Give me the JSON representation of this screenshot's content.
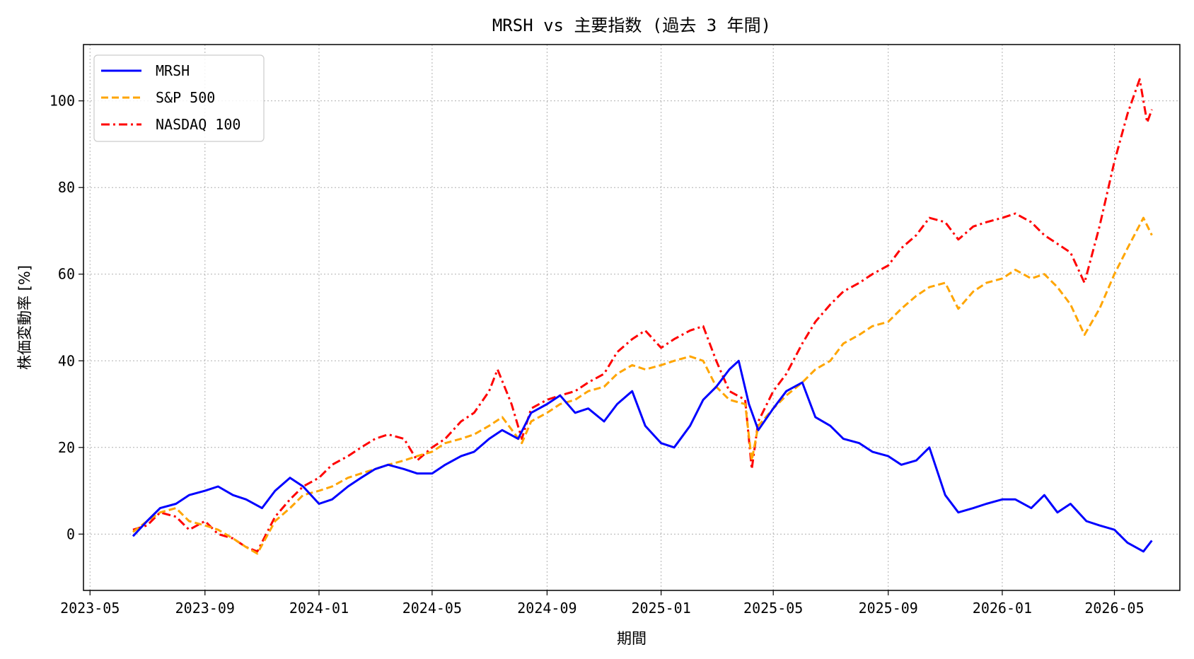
{
  "chart_data": {
    "type": "line",
    "title": "MRSH vs 主要指数 (過去 3 年間)",
    "xlabel": "期間",
    "ylabel": "株価変動率 [%]",
    "x_range": [
      "2023-04-24",
      "2026-07-10"
    ],
    "ylim": [
      -13,
      113
    ],
    "yticks": [
      0,
      20,
      40,
      60,
      80,
      100
    ],
    "xticks": [
      {
        "date": "2023-05-01",
        "label": "2023-05"
      },
      {
        "date": "2023-09-01",
        "label": "2023-09"
      },
      {
        "date": "2024-01-01",
        "label": "2024-01"
      },
      {
        "date": "2024-05-01",
        "label": "2024-05"
      },
      {
        "date": "2024-09-01",
        "label": "2024-09"
      },
      {
        "date": "2025-01-01",
        "label": "2025-01"
      },
      {
        "date": "2025-05-01",
        "label": "2025-05"
      },
      {
        "date": "2025-09-01",
        "label": "2025-09"
      },
      {
        "date": "2026-01-01",
        "label": "2026-01"
      },
      {
        "date": "2026-05-01",
        "label": "2026-05"
      }
    ],
    "grid": true,
    "legend_position": "top-left",
    "series": [
      {
        "name": "MRSH",
        "color": "#0000ff",
        "style": "solid",
        "x": [
          "2023-06-16",
          "2023-07-01",
          "2023-07-15",
          "2023-08-01",
          "2023-08-15",
          "2023-09-01",
          "2023-09-15",
          "2023-10-01",
          "2023-10-15",
          "2023-11-01",
          "2023-11-15",
          "2023-12-01",
          "2023-12-15",
          "2024-01-01",
          "2024-01-15",
          "2024-02-01",
          "2024-02-15",
          "2024-03-01",
          "2024-03-15",
          "2024-04-01",
          "2024-04-15",
          "2024-05-01",
          "2024-05-15",
          "2024-06-01",
          "2024-06-15",
          "2024-07-01",
          "2024-07-15",
          "2024-08-01",
          "2024-08-15",
          "2024-09-01",
          "2024-09-15",
          "2024-10-01",
          "2024-10-15",
          "2024-11-01",
          "2024-11-15",
          "2024-12-01",
          "2024-12-15",
          "2025-01-01",
          "2025-01-15",
          "2025-02-01",
          "2025-02-15",
          "2025-03-01",
          "2025-03-15",
          "2025-03-25",
          "2025-04-05",
          "2025-04-15",
          "2025-05-01",
          "2025-05-15",
          "2025-06-01",
          "2025-06-15",
          "2025-07-01",
          "2025-07-15",
          "2025-08-01",
          "2025-08-15",
          "2025-09-01",
          "2025-09-15",
          "2025-10-01",
          "2025-10-15",
          "2025-11-01",
          "2025-11-15",
          "2025-12-01",
          "2025-12-15",
          "2026-01-01",
          "2026-01-15",
          "2026-02-01",
          "2026-02-15",
          "2026-03-01",
          "2026-03-15",
          "2026-04-01",
          "2026-04-15",
          "2026-05-01",
          "2026-05-15",
          "2026-06-01",
          "2026-06-10"
        ],
        "values": [
          -0.5,
          3,
          6,
          7,
          9,
          10,
          11,
          9,
          8,
          6,
          10,
          13,
          11,
          7,
          8,
          11,
          13,
          15,
          16,
          15,
          14,
          14,
          16,
          18,
          19,
          22,
          24,
          22,
          28,
          30,
          32,
          28,
          29,
          26,
          30,
          33,
          25,
          21,
          20,
          25,
          31,
          34,
          38,
          40,
          30,
          24,
          29,
          33,
          35,
          27,
          25,
          22,
          21,
          19,
          18,
          16,
          17,
          20,
          9,
          5,
          6,
          7,
          8,
          8,
          6,
          9,
          5,
          7,
          3,
          2,
          1,
          -2,
          -4,
          -1.5
        ]
      },
      {
        "name": "S&P 500",
        "color": "#ffa500",
        "style": "dashed",
        "x": [
          "2023-06-16",
          "2023-07-01",
          "2023-07-15",
          "2023-08-01",
          "2023-08-15",
          "2023-09-01",
          "2023-09-15",
          "2023-10-01",
          "2023-10-15",
          "2023-10-27",
          "2023-11-15",
          "2023-12-01",
          "2023-12-15",
          "2024-01-01",
          "2024-01-15",
          "2024-02-01",
          "2024-02-15",
          "2024-03-01",
          "2024-03-15",
          "2024-04-01",
          "2024-04-15",
          "2024-05-01",
          "2024-05-15",
          "2024-06-01",
          "2024-06-15",
          "2024-07-01",
          "2024-07-15",
          "2024-08-05",
          "2024-08-15",
          "2024-09-01",
          "2024-09-15",
          "2024-10-01",
          "2024-10-15",
          "2024-11-01",
          "2024-11-15",
          "2024-12-01",
          "2024-12-15",
          "2025-01-01",
          "2025-01-15",
          "2025-02-01",
          "2025-02-15",
          "2025-03-01",
          "2025-03-15",
          "2025-04-01",
          "2025-04-08",
          "2025-04-15",
          "2025-05-01",
          "2025-05-15",
          "2025-06-01",
          "2025-06-15",
          "2025-07-01",
          "2025-07-15",
          "2025-08-01",
          "2025-08-15",
          "2025-09-01",
          "2025-09-15",
          "2025-10-01",
          "2025-10-15",
          "2025-11-01",
          "2025-11-15",
          "2025-12-01",
          "2025-12-15",
          "2026-01-01",
          "2026-01-15",
          "2026-02-01",
          "2026-02-15",
          "2026-03-01",
          "2026-03-15",
          "2026-03-30",
          "2026-04-15",
          "2026-05-01",
          "2026-05-15",
          "2026-06-01",
          "2026-06-10"
        ],
        "values": [
          0.5,
          3,
          5,
          6,
          3,
          2,
          1,
          -1,
          -3,
          -4.5,
          3,
          6,
          9,
          10,
          11,
          13,
          14,
          15,
          16,
          17,
          18,
          19,
          21,
          22,
          23,
          25,
          27,
          21,
          26,
          28,
          30,
          31,
          33,
          34,
          37,
          39,
          38,
          39,
          40,
          41,
          40,
          34,
          31,
          30,
          17,
          25,
          29,
          32,
          35,
          38,
          40,
          44,
          46,
          48,
          49,
          52,
          55,
          57,
          58,
          52,
          56,
          58,
          59,
          61,
          59,
          60,
          57,
          53,
          46,
          52,
          60,
          66,
          73,
          69
        ]
      },
      {
        "name": "NASDAQ 100",
        "color": "#ff0000",
        "style": "dashdot",
        "x": [
          "2023-06-16",
          "2023-07-01",
          "2023-07-15",
          "2023-08-01",
          "2023-08-15",
          "2023-09-01",
          "2023-09-15",
          "2023-10-01",
          "2023-10-15",
          "2023-10-27",
          "2023-11-15",
          "2023-12-01",
          "2023-12-15",
          "2024-01-01",
          "2024-01-15",
          "2024-02-01",
          "2024-02-15",
          "2024-03-01",
          "2024-03-15",
          "2024-04-01",
          "2024-04-15",
          "2024-05-01",
          "2024-05-15",
          "2024-06-01",
          "2024-06-15",
          "2024-07-01",
          "2024-07-10",
          "2024-07-25",
          "2024-08-05",
          "2024-08-15",
          "2024-09-01",
          "2024-09-15",
          "2024-10-01",
          "2024-10-15",
          "2024-11-01",
          "2024-11-15",
          "2024-12-01",
          "2024-12-15",
          "2025-01-01",
          "2025-01-15",
          "2025-02-01",
          "2025-02-15",
          "2025-03-01",
          "2025-03-15",
          "2025-04-01",
          "2025-04-08",
          "2025-04-15",
          "2025-05-01",
          "2025-05-15",
          "2025-06-01",
          "2025-06-15",
          "2025-07-01",
          "2025-07-15",
          "2025-08-01",
          "2025-08-15",
          "2025-09-01",
          "2025-09-15",
          "2025-10-01",
          "2025-10-15",
          "2025-11-01",
          "2025-11-15",
          "2025-12-01",
          "2025-12-15",
          "2026-01-01",
          "2026-01-15",
          "2026-02-01",
          "2026-02-15",
          "2026-03-01",
          "2026-03-15",
          "2026-03-30",
          "2026-04-15",
          "2026-05-01",
          "2026-05-15",
          "2026-05-28",
          "2026-06-05",
          "2026-06-10"
        ],
        "values": [
          1,
          2,
          5,
          4,
          1,
          3,
          0,
          -1,
          -3,
          -4,
          4,
          8,
          11,
          13,
          16,
          18,
          20,
          22,
          23,
          22,
          17,
          20,
          22,
          26,
          28,
          33,
          38,
          30,
          22,
          29,
          31,
          32,
          33,
          35,
          37,
          42,
          45,
          47,
          43,
          45,
          47,
          48,
          40,
          33,
          31,
          15,
          26,
          33,
          37,
          44,
          49,
          53,
          56,
          58,
          60,
          62,
          66,
          69,
          73,
          72,
          68,
          71,
          72,
          73,
          74,
          72,
          69,
          67,
          65,
          58,
          71,
          86,
          97,
          105,
          95,
          98
        ]
      }
    ]
  }
}
